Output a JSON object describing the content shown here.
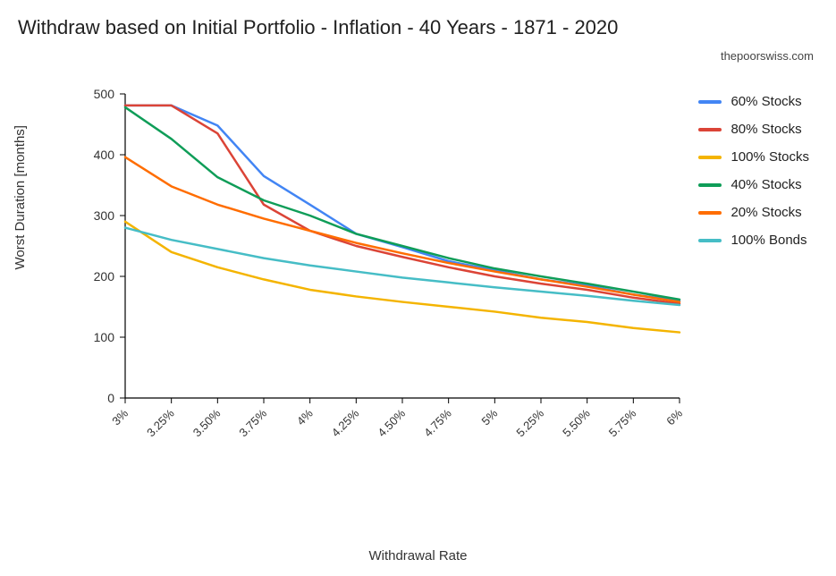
{
  "chart": {
    "type": "line",
    "title": "Withdraw based on Initial Portfolio - Inflation - 40 Years - 1871 - 2020",
    "credit": "thepoorswiss.com",
    "x_axis_label": "Withdrawal Rate",
    "y_axis_label": "Worst Duration [months]",
    "background_color": "#ffffff",
    "axis_color": "#000000",
    "tick_mark_color": "#000000",
    "title_fontsize": 22,
    "axis_label_fontsize": 15,
    "tick_fontsize_y": 14,
    "tick_fontsize_x": 13,
    "legend_fontsize": 15,
    "line_width": 2.5,
    "ylim": [
      0,
      500
    ],
    "ytick_step": 100,
    "yticks": [
      0,
      100,
      200,
      300,
      400,
      500
    ],
    "xticks": [
      "3%",
      "3.25%",
      "3.50%",
      "3.75%",
      "4%",
      "4.25%",
      "4.50%",
      "4.75%",
      "5%",
      "5.25%",
      "5.50%",
      "5.75%",
      "6%"
    ],
    "legend_position": "right",
    "series": [
      {
        "name": "60% Stocks",
        "color": "#4285f4",
        "values": [
          481,
          481,
          448,
          365,
          318,
          270,
          248,
          225,
          210,
          195,
          185,
          170,
          160
        ]
      },
      {
        "name": "80% Stocks",
        "color": "#db4437",
        "values": [
          481,
          481,
          435,
          318,
          275,
          250,
          232,
          215,
          200,
          188,
          178,
          165,
          155
        ]
      },
      {
        "name": "100% Stocks",
        "color": "#f4b400",
        "values": [
          290,
          240,
          215,
          195,
          178,
          167,
          158,
          150,
          142,
          132,
          125,
          115,
          108
        ]
      },
      {
        "name": "40% Stocks",
        "color": "#0f9d58",
        "values": [
          478,
          426,
          363,
          325,
          300,
          270,
          250,
          230,
          213,
          200,
          188,
          175,
          162
        ]
      },
      {
        "name": "20% Stocks",
        "color": "#ff6d00",
        "values": [
          396,
          348,
          318,
          295,
          275,
          255,
          238,
          222,
          208,
          195,
          183,
          170,
          158
        ]
      },
      {
        "name": "100% Bonds",
        "color": "#46bdc6",
        "values": [
          280,
          260,
          245,
          230,
          218,
          208,
          198,
          190,
          182,
          175,
          168,
          160,
          153
        ]
      }
    ]
  }
}
